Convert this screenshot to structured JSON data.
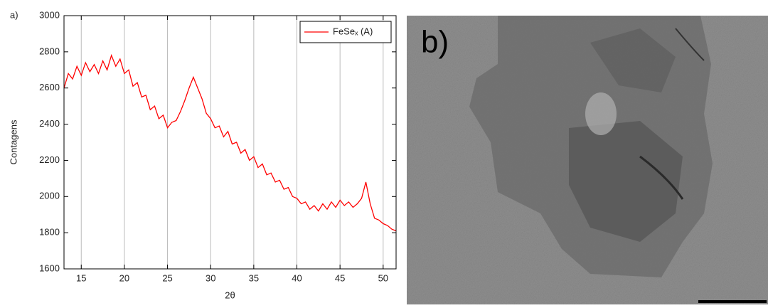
{
  "chart_data": {
    "type": "line",
    "panel_label": "a)",
    "xlabel": "2θ",
    "ylabel": "Contagens",
    "x": [
      13,
      13.5,
      14,
      14.5,
      15,
      15.5,
      16,
      16.5,
      17,
      17.5,
      18,
      18.5,
      19,
      19.5,
      20,
      20.5,
      21,
      21.5,
      22,
      22.5,
      23,
      23.5,
      24,
      24.5,
      25,
      25.5,
      26,
      26.5,
      27,
      27.5,
      28,
      28.5,
      29,
      29.5,
      30,
      30.5,
      31,
      31.5,
      32,
      32.5,
      33,
      33.5,
      34,
      34.5,
      35,
      35.5,
      36,
      36.5,
      37,
      37.5,
      38,
      38.5,
      39,
      39.5,
      40,
      40.5,
      41,
      41.5,
      42,
      42.5,
      43,
      43.5,
      44,
      44.5,
      45,
      45.5,
      46,
      46.5,
      47,
      47.5,
      48,
      48.5,
      49,
      49.5,
      50,
      50.5,
      51,
      51.5
    ],
    "series": [
      {
        "name": "FeSeₓ (A)",
        "color": "#ff0000",
        "values": [
          2600,
          2680,
          2650,
          2720,
          2670,
          2740,
          2690,
          2730,
          2680,
          2750,
          2700,
          2780,
          2720,
          2760,
          2680,
          2700,
          2610,
          2630,
          2550,
          2560,
          2480,
          2500,
          2430,
          2450,
          2380,
          2410,
          2420,
          2470,
          2530,
          2600,
          2660,
          2600,
          2540,
          2460,
          2430,
          2380,
          2390,
          2330,
          2360,
          2290,
          2300,
          2240,
          2260,
          2200,
          2220,
          2160,
          2180,
          2120,
          2130,
          2080,
          2090,
          2040,
          2050,
          2000,
          1990,
          1960,
          1970,
          1930,
          1950,
          1920,
          1960,
          1930,
          1970,
          1940,
          1980,
          1950,
          1970,
          1940,
          1960,
          1990,
          2080,
          1960,
          1880,
          1870,
          1850,
          1840,
          1820,
          1810
        ]
      }
    ],
    "xlim": [
      13,
      51.5
    ],
    "xticks": [
      15,
      20,
      25,
      30,
      35,
      40,
      45,
      50
    ],
    "ylim": [
      1600,
      3000
    ],
    "yticks": [
      1600,
      1800,
      2000,
      2200,
      2400,
      2600,
      2800,
      3000
    ],
    "grid": "x",
    "legend": "top-right"
  },
  "image_panel": {
    "label": "b)"
  }
}
